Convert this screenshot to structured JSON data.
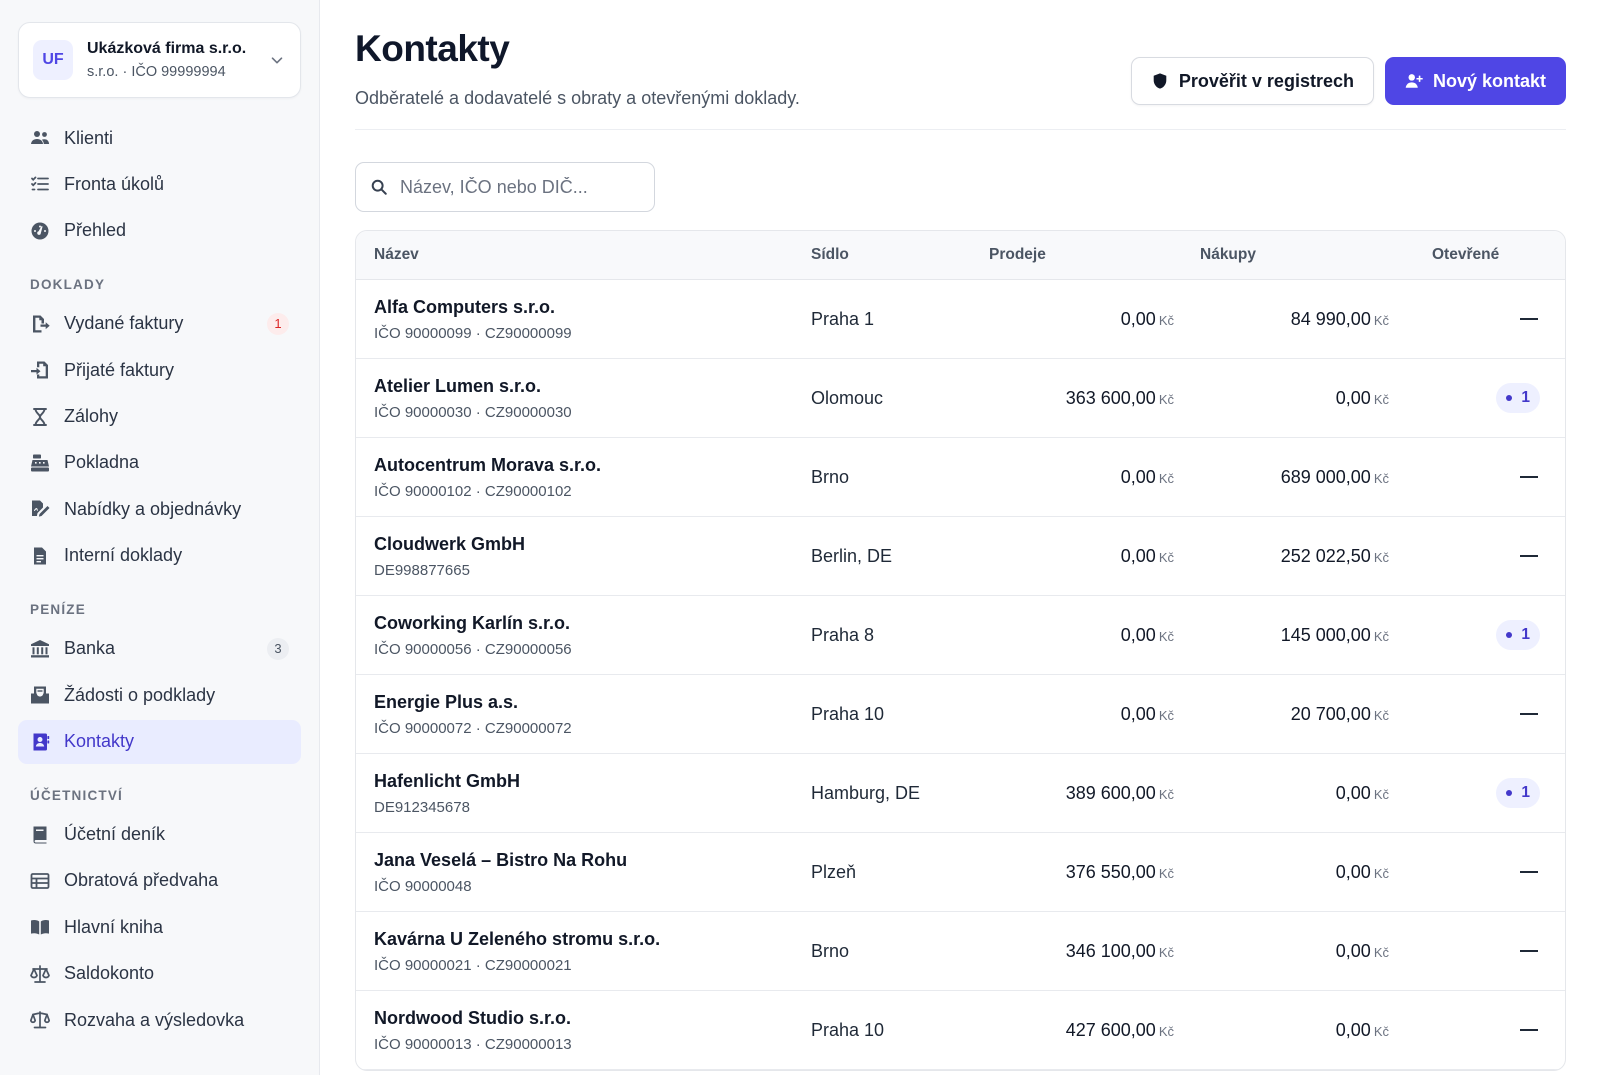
{
  "org": {
    "initials": "UF",
    "name": "Ukázková firma s.r.o.",
    "sub": "s.r.o. · IČO 99999994"
  },
  "nav": {
    "top": [
      {
        "label": "Klienti",
        "icon": "users-icon"
      },
      {
        "label": "Fronta úkolů",
        "icon": "task-list-icon"
      },
      {
        "label": "Přehled",
        "icon": "gauge-icon"
      }
    ],
    "sections": [
      {
        "title": "DOKLADY",
        "items": [
          {
            "label": "Vydané faktury",
            "icon": "invoice-out-icon",
            "badge": "1",
            "badge_color": "red"
          },
          {
            "label": "Přijaté faktury",
            "icon": "invoice-in-icon"
          },
          {
            "label": "Zálohy",
            "icon": "hourglass-icon"
          },
          {
            "label": "Pokladna",
            "icon": "cash-register-icon"
          },
          {
            "label": "Nabídky a objednávky",
            "icon": "file-signature-icon"
          },
          {
            "label": "Interní doklady",
            "icon": "document-icon"
          }
        ]
      },
      {
        "title": "PENÍZE",
        "items": [
          {
            "label": "Banka",
            "icon": "bank-icon",
            "badge": "3",
            "badge_color": "grey"
          },
          {
            "label": "Žádosti o podklady",
            "icon": "inbox-icon"
          },
          {
            "label": "Kontakty",
            "icon": "address-book-icon",
            "active": true
          }
        ]
      },
      {
        "title": "ÚČETNICTVÍ",
        "items": [
          {
            "label": "Účetní deník",
            "icon": "journal-icon"
          },
          {
            "label": "Obratová předvaha",
            "icon": "table-icon"
          },
          {
            "label": "Hlavní kniha",
            "icon": "open-book-icon"
          },
          {
            "label": "Saldokonto",
            "icon": "scale-icon"
          },
          {
            "label": "Rozvaha a výsledovka",
            "icon": "balance-scale-icon"
          }
        ]
      }
    ]
  },
  "page": {
    "title": "Kontakty",
    "subtitle": "Odběratelé a dodavatelé s obraty a otevřenými doklady.",
    "verify_label": "Prověřit v registrech",
    "new_contact_label": "Nový kontakt"
  },
  "search": {
    "placeholder": "Název, IČO nebo DIČ...",
    "value": ""
  },
  "table": {
    "columns": [
      "Název",
      "Sídlo",
      "Prodeje",
      "Nákupy",
      "Otevřené"
    ],
    "currency": "Kč",
    "rows": [
      {
        "name": "Alfa Computers s.r.o.",
        "ids": "IČO 90000099 · CZ90000099",
        "city": "Praha 1",
        "sales": "0,00",
        "purchases": "84 990,00",
        "open": ""
      },
      {
        "name": "Atelier Lumen s.r.o.",
        "ids": "IČO 90000030 · CZ90000030",
        "city": "Olomouc",
        "sales": "363 600,00",
        "purchases": "0,00",
        "open": "1"
      },
      {
        "name": "Autocentrum Morava s.r.o.",
        "ids": "IČO 90000102 · CZ90000102",
        "city": "Brno",
        "sales": "0,00",
        "purchases": "689 000,00",
        "open": ""
      },
      {
        "name": "Cloudwerk GmbH",
        "ids": "DE998877665",
        "city": "Berlin, DE",
        "sales": "0,00",
        "purchases": "252 022,50",
        "open": ""
      },
      {
        "name": "Coworking Karlín s.r.o.",
        "ids": "IČO 90000056 · CZ90000056",
        "city": "Praha 8",
        "sales": "0,00",
        "purchases": "145 000,00",
        "open": "1"
      },
      {
        "name": "Energie Plus a.s.",
        "ids": "IČO 90000072 · CZ90000072",
        "city": "Praha 10",
        "sales": "0,00",
        "purchases": "20 700,00",
        "open": ""
      },
      {
        "name": "Hafenlicht GmbH",
        "ids": "DE912345678",
        "city": "Hamburg, DE",
        "sales": "389 600,00",
        "purchases": "0,00",
        "open": "1"
      },
      {
        "name": "Jana Veselá – Bistro Na Rohu",
        "ids": "IČO 90000048",
        "city": "Plzeň",
        "sales": "376 550,00",
        "purchases": "0,00",
        "open": ""
      },
      {
        "name": "Kavárna U Zeleného stromu s.r.o.",
        "ids": "IČO 90000021 · CZ90000021",
        "city": "Brno",
        "sales": "346 100,00",
        "purchases": "0,00",
        "open": ""
      },
      {
        "name": "Nordwood Studio s.r.o.",
        "ids": "IČO 90000013 · CZ90000013",
        "city": "Praha 10",
        "sales": "427 600,00",
        "purchases": "0,00",
        "open": ""
      }
    ]
  },
  "colors": {
    "accent": "#4f46e5",
    "active_nav_bg": "#e9ecff",
    "badge_red": "#dc2626"
  }
}
